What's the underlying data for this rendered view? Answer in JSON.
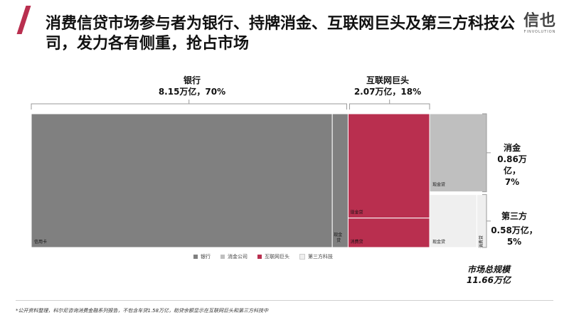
{
  "header": {
    "title": "消费信贷市场参与者为银行、持牌消金、互联网巨头及第三方科技公司，发力各有侧重，抢占市场",
    "logo_text": "信也",
    "logo_sub": "FINVOLUTION"
  },
  "colors": {
    "bank": "#808080",
    "consumer_finance": "#bfbfbf",
    "internet": "#b92f4f",
    "third_party": "#efefef",
    "accent": "#b92f4f"
  },
  "groups": {
    "bank": {
      "name": "银行",
      "value": "8.15万亿，70%"
    },
    "internet": {
      "name": "互联网巨头",
      "value": "2.07万亿，18%"
    },
    "consumer_finance": {
      "name": "消金",
      "value1": "0.86万亿，",
      "value2": "7%"
    },
    "third_party": {
      "name": "第三方",
      "value1": "0.58万亿，",
      "value2": "5%"
    }
  },
  "total": {
    "line1": "市场总规模",
    "line2": "11.66万亿"
  },
  "footnote": "*公开资料整理，科尔尼咨询消费金融系列报告，不包含车贷1.58万亿，助贷余额显示在互联网巨头和第三方科技中",
  "chart_data": {
    "type": "marimekko",
    "unit": "万亿",
    "total": 11.66,
    "columns": [
      {
        "name": "银行",
        "value": 8.15,
        "share": 0.7,
        "segments": [
          {
            "label": "信用卡",
            "share": 0.95
          },
          {
            "label": "现金贷",
            "share": 0.05
          }
        ]
      },
      {
        "name": "互联网巨头",
        "value": 2.07,
        "share": 0.18,
        "segments": [
          {
            "label": "现金贷",
            "share": 0.78
          },
          {
            "label": "消费贷",
            "share": 0.22
          }
        ]
      },
      {
        "name": "消金",
        "value": 0.86,
        "share": 0.07,
        "segments": [
          {
            "label": "现金贷",
            "share": 1.0
          }
        ]
      },
      {
        "name": "第三方",
        "value": 0.58,
        "share": 0.05,
        "segments": [
          {
            "label": "现金贷",
            "share": 0.83
          },
          {
            "label": "消费贷",
            "share": 0.17
          }
        ]
      }
    ],
    "legend": [
      "银行",
      "消金公司",
      "互联网巨头",
      "第三方科技"
    ],
    "legend_position": "bottom"
  }
}
